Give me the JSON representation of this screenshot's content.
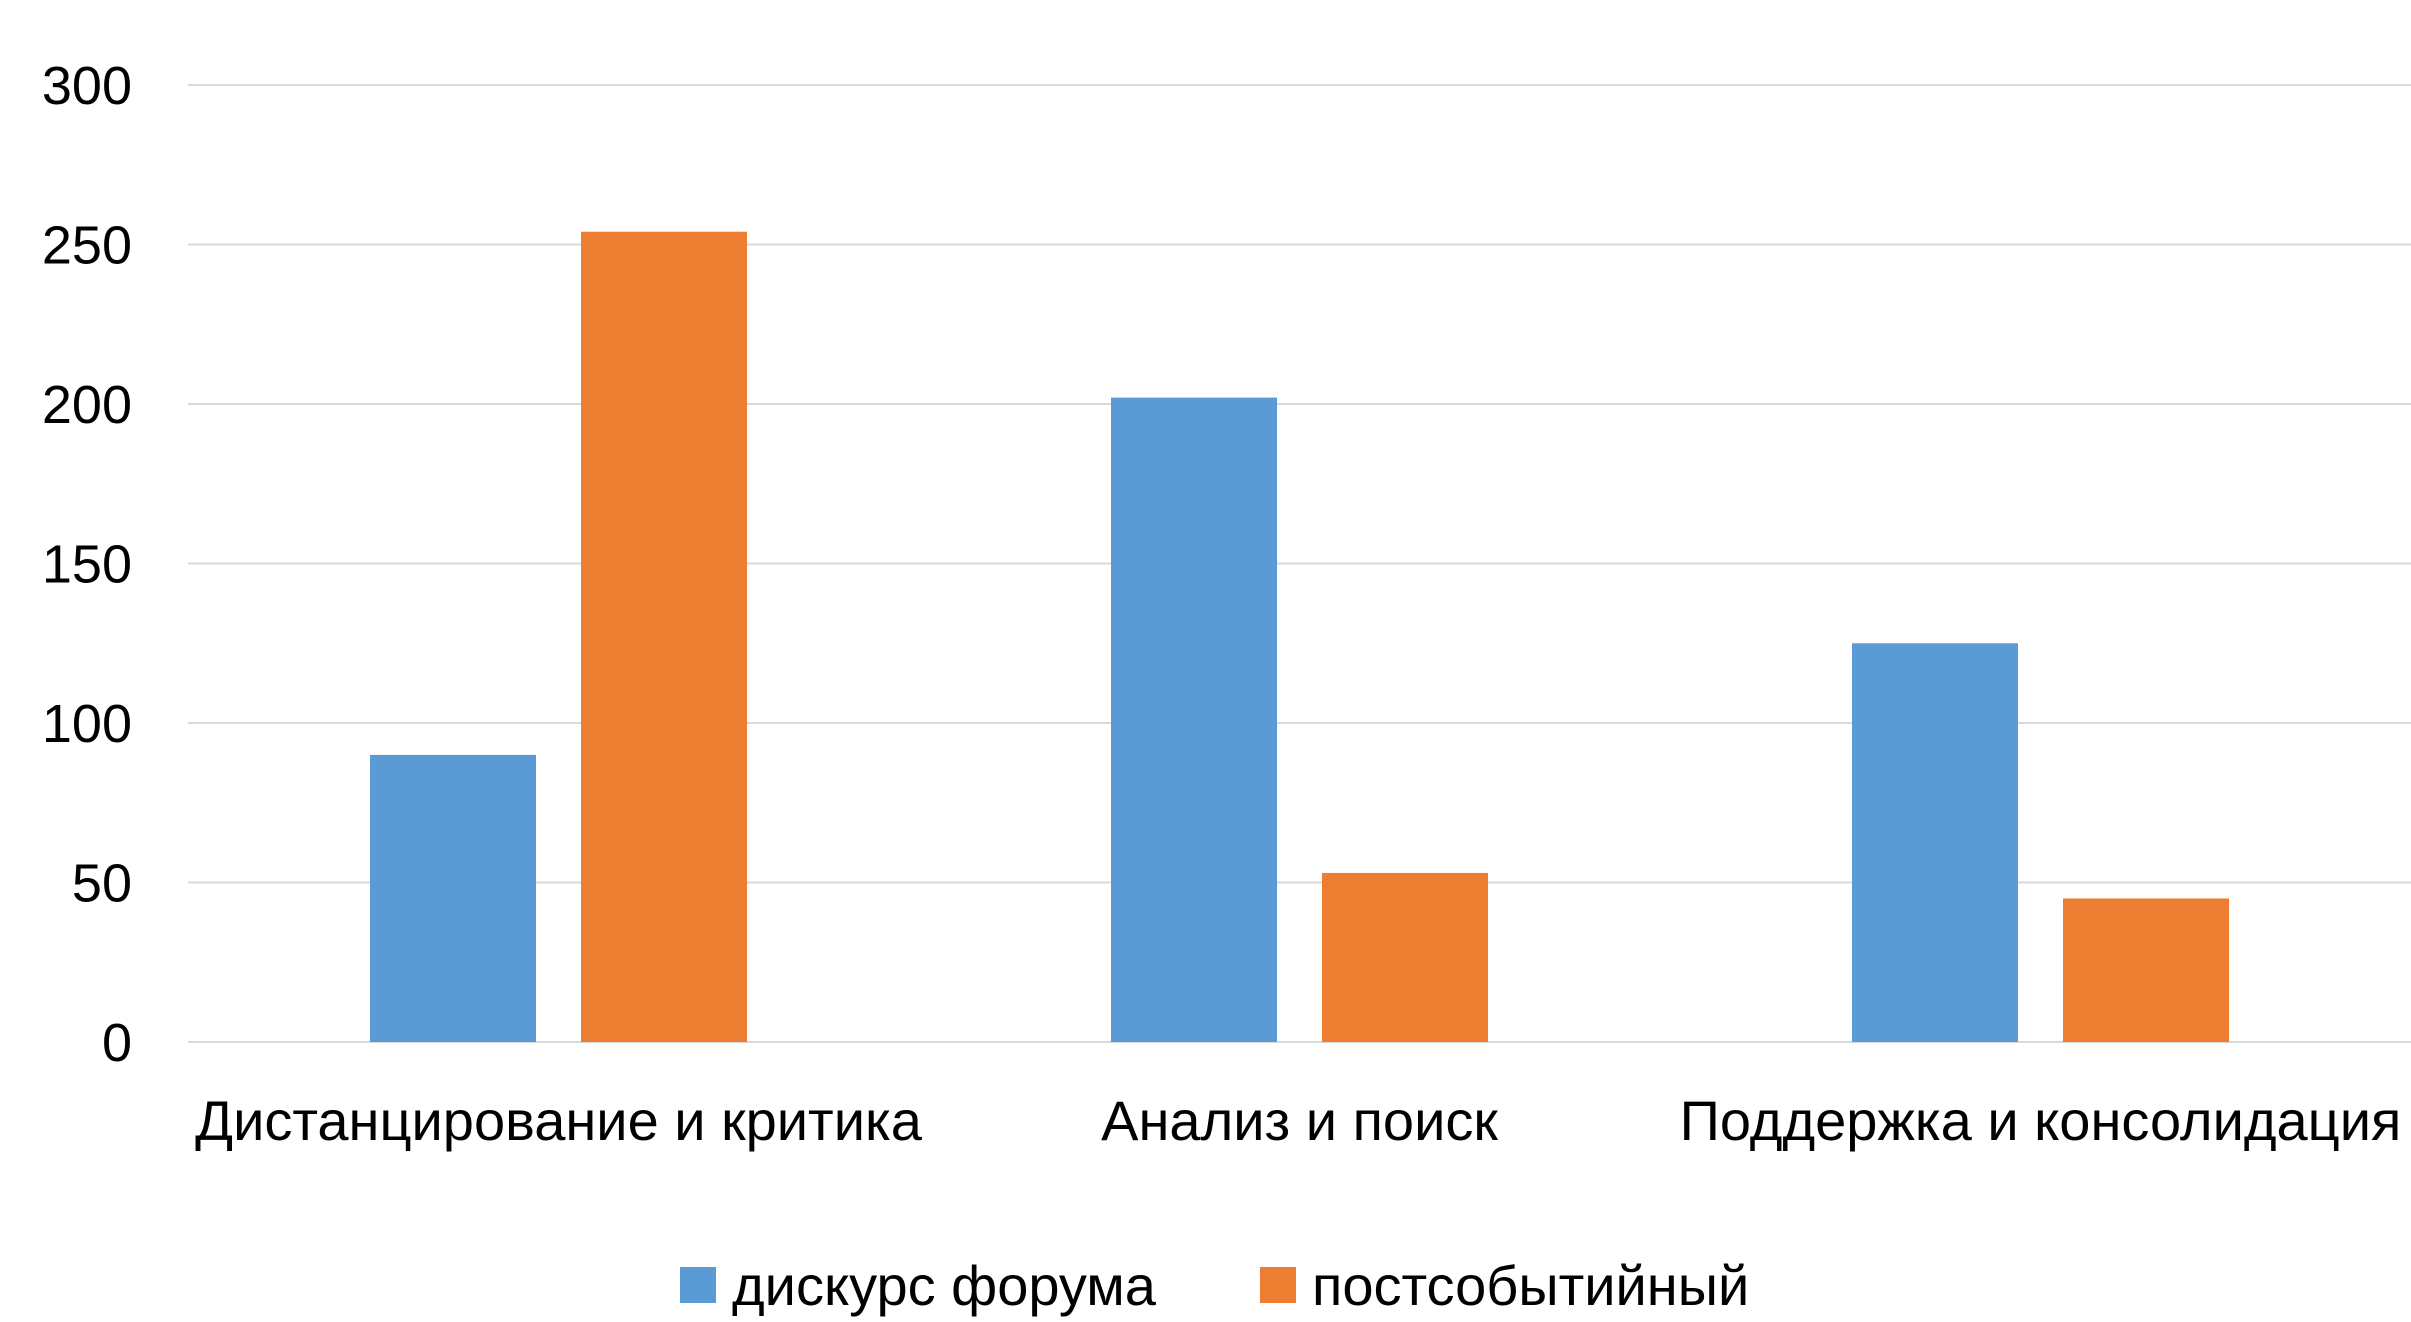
{
  "chart_data": {
    "type": "bar",
    "categories": [
      "Дистанцирование и критика",
      "Анализ и поиск",
      "Поддержка и консолидация"
    ],
    "series": [
      {
        "name": "дискурс форума",
        "values": [
          90,
          202,
          125
        ],
        "color": "#5b9bd5"
      },
      {
        "name": "постсобытийный",
        "values": [
          254,
          53,
          45
        ],
        "color": "#ed7d31"
      }
    ],
    "y_ticks": [
      "0",
      "50",
      "100",
      "150",
      "200",
      "250",
      "300"
    ],
    "ylim": [
      0,
      300
    ],
    "grid": true,
    "legend_position": "bottom"
  }
}
